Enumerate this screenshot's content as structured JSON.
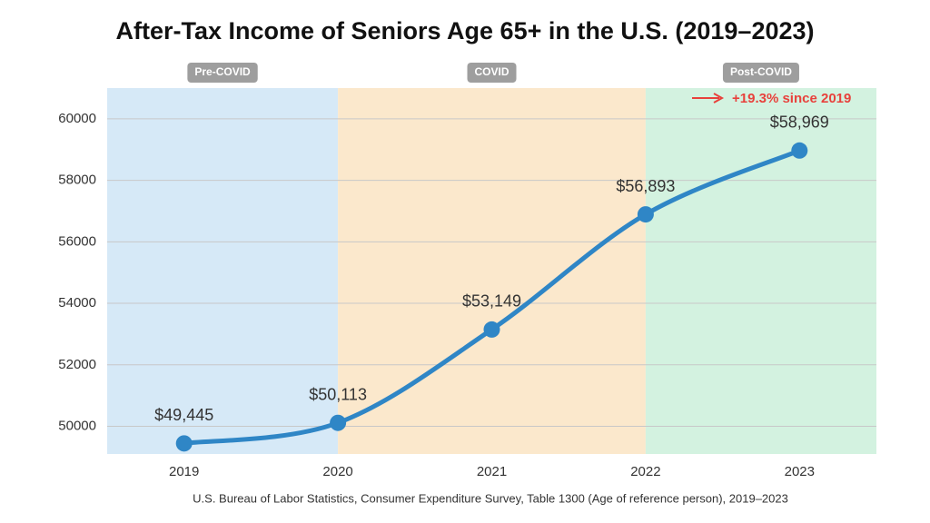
{
  "chart_data": {
    "type": "line",
    "title": "After-Tax Income of Seniors Age 65+ in the U.S. (2019–2023)",
    "source": "U.S. Bureau of Labor Statistics, Consumer Expenditure Survey, Table 1300 (Age of reference person), 2019–2023",
    "x": [
      2019,
      2020,
      2021,
      2022,
      2023
    ],
    "xlim": [
      2018.5,
      2023.5
    ],
    "xticks": [
      2019,
      2020,
      2021,
      2022,
      2023
    ],
    "series": [
      {
        "color": "#2f86c6",
        "values": [
          49445,
          50113,
          53149,
          56893,
          58969
        ],
        "value_labels": [
          "$49,445",
          "$50,113",
          "$53,149",
          "$56,893",
          "$58,969"
        ]
      }
    ],
    "ylim": [
      49100,
      61000
    ],
    "yticks": [
      50000,
      52000,
      54000,
      56000,
      58000,
      60000
    ],
    "grid": true,
    "regions": [
      {
        "label": "Pre-COVID",
        "start": 2018.5,
        "end": 2020,
        "color": "#d6e9f7"
      },
      {
        "label": "COVID",
        "start": 2020,
        "end": 2022,
        "color": "#fbe8cc"
      },
      {
        "label": "Post-COVID",
        "start": 2022,
        "end": 2023.5,
        "color": "#d3f2e0"
      }
    ],
    "annotation": {
      "text": "+19.3% since 2019",
      "color": "#e8413c"
    }
  }
}
